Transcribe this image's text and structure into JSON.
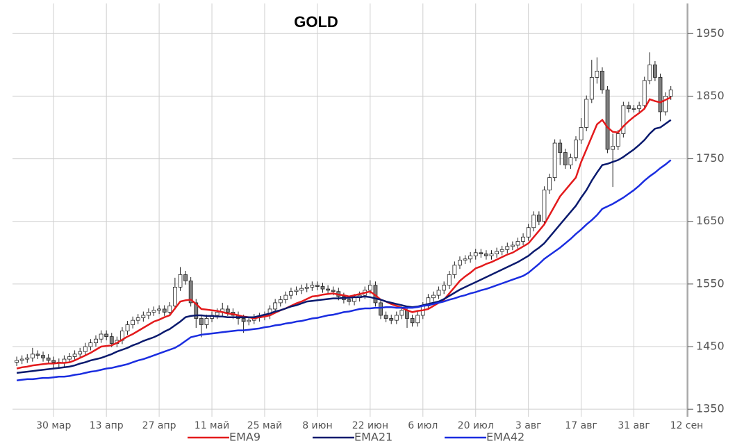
{
  "chart_data": {
    "type": "candlestick",
    "title": "GOLD",
    "categories": [
      null,
      null,
      null,
      null,
      null,
      null,
      null,
      "30 мар",
      null,
      null,
      null,
      null,
      null,
      null,
      null,
      null,
      null,
      "13 апр",
      null,
      null,
      null,
      null,
      null,
      null,
      null,
      null,
      null,
      "27 апр",
      null,
      null,
      null,
      null,
      null,
      null,
      null,
      null,
      null,
      "11 май",
      null,
      null,
      null,
      null,
      null,
      null,
      null,
      null,
      null,
      "25 май",
      null,
      null,
      null,
      null,
      null,
      null,
      null,
      null,
      null,
      "8 июн",
      null,
      null,
      null,
      null,
      null,
      null,
      null,
      null,
      null,
      "22 июн",
      null,
      null,
      null,
      null,
      null,
      null,
      null,
      null,
      null,
      "6 июл",
      null,
      null,
      null,
      null,
      null,
      null,
      null,
      null,
      null,
      "20 июл",
      null,
      null,
      null,
      null,
      null,
      null,
      null,
      null,
      null,
      "3 авг",
      null,
      null,
      null,
      null,
      null,
      null,
      null,
      null,
      null,
      "17 авг",
      null,
      null,
      null,
      null,
      null,
      null,
      null,
      null,
      null,
      "31 авг",
      null,
      null,
      null,
      null,
      null,
      null,
      null,
      null,
      null,
      "12 сен"
    ],
    "candles": {
      "up_color": "#ffffff",
      "down_color": "#808080",
      "open": [
        1425,
        1428,
        1430,
        1432,
        1438,
        1436,
        1432,
        1428,
        1425,
        1424,
        1430,
        1434,
        1438,
        1442,
        1450,
        1456,
        1462,
        1470,
        1466,
        1455,
        1460,
        1475,
        1485,
        1492,
        1496,
        1500,
        1505,
        1508,
        1510,
        1505,
        1515,
        1545,
        1565,
        1555,
        1520,
        1495,
        1485,
        1495,
        1500,
        1505,
        1510,
        1505,
        1500,
        1495,
        1490,
        1492,
        1496,
        1498,
        1500,
        1510,
        1520,
        1525,
        1532,
        1538,
        1540,
        1543,
        1545,
        1548,
        1546,
        1542,
        1540,
        1538,
        1530,
        1525,
        1522,
        1528,
        1532,
        1540,
        1548,
        1520,
        1500,
        1495,
        1492,
        1500,
        1508,
        1495,
        1488,
        1500,
        1515,
        1528,
        1532,
        1540,
        1548,
        1565,
        1580,
        1588,
        1590,
        1595,
        1600,
        1598,
        1595,
        1598,
        1602,
        1605,
        1610,
        1612,
        1618,
        1625,
        1640,
        1660,
        1650,
        1700,
        1720,
        1775,
        1760,
        1740,
        1752,
        1780,
        1800,
        1845,
        1880,
        1890,
        1860,
        1765,
        1770,
        1790,
        1835,
        1830,
        1830,
        1835,
        1875,
        1900,
        1880,
        1825,
        1850,
        null,
        null,
        null
      ],
      "high": [
        1434,
        1436,
        1438,
        1448,
        1444,
        1442,
        1438,
        1434,
        1431,
        1436,
        1440,
        1444,
        1448,
        1456,
        1462,
        1468,
        1476,
        1476,
        1472,
        1466,
        1481,
        1491,
        1498,
        1502,
        1506,
        1511,
        1514,
        1516,
        1516,
        1521,
        1560,
        1577,
        1571,
        1561,
        1526,
        1501,
        1501,
        1506,
        1511,
        1520,
        1516,
        1511,
        1506,
        1501,
        1498,
        1502,
        1504,
        1506,
        1516,
        1526,
        1531,
        1538,
        1544,
        1546,
        1549,
        1551,
        1554,
        1554,
        1552,
        1548,
        1546,
        1544,
        1536,
        1531,
        1534,
        1538,
        1546,
        1556,
        1554,
        1526,
        1506,
        1501,
        1506,
        1514,
        1514,
        1501,
        1506,
        1521,
        1534,
        1538,
        1546,
        1554,
        1571,
        1586,
        1594,
        1596,
        1601,
        1606,
        1606,
        1604,
        1604,
        1608,
        1611,
        1616,
        1618,
        1624,
        1631,
        1646,
        1666,
        1666,
        1706,
        1726,
        1781,
        1781,
        1766,
        1758,
        1786,
        1815,
        1851,
        1908,
        1912,
        1896,
        1866,
        1790,
        1796,
        1841,
        1841,
        1836,
        1841,
        1881,
        1920,
        1906,
        1886,
        1856,
        1866,
        null,
        null,
        null
      ],
      "low": [
        1419,
        1422,
        1424,
        1426,
        1430,
        1426,
        1422,
        1416,
        1415,
        1418,
        1424,
        1428,
        1432,
        1436,
        1444,
        1450,
        1456,
        1460,
        1449,
        1449,
        1454,
        1469,
        1479,
        1486,
        1490,
        1494,
        1499,
        1502,
        1499,
        1499,
        1509,
        1539,
        1549,
        1514,
        1480,
        1465,
        1479,
        1489,
        1494,
        1499,
        1499,
        1494,
        1485,
        1472,
        1484,
        1486,
        1490,
        1492,
        1494,
        1504,
        1514,
        1519,
        1526,
        1532,
        1534,
        1537,
        1539,
        1540,
        1536,
        1534,
        1532,
        1524,
        1519,
        1516,
        1516,
        1522,
        1526,
        1534,
        1514,
        1494,
        1489,
        1486,
        1486,
        1494,
        1480,
        1482,
        1482,
        1494,
        1509,
        1522,
        1526,
        1534,
        1542,
        1559,
        1574,
        1582,
        1584,
        1589,
        1592,
        1589,
        1589,
        1592,
        1596,
        1599,
        1604,
        1606,
        1612,
        1619,
        1634,
        1644,
        1644,
        1694,
        1714,
        1740,
        1734,
        1734,
        1746,
        1774,
        1794,
        1839,
        1870,
        1854,
        1759,
        1705,
        1764,
        1784,
        1824,
        1824,
        1824,
        1829,
        1869,
        1874,
        1810,
        1819,
        1844,
        null,
        null,
        null
      ],
      "close": [
        1428,
        1430,
        1432,
        1438,
        1436,
        1432,
        1428,
        1425,
        1424,
        1430,
        1434,
        1438,
        1442,
        1450,
        1456,
        1462,
        1470,
        1466,
        1455,
        1460,
        1475,
        1485,
        1492,
        1496,
        1500,
        1505,
        1508,
        1510,
        1505,
        1515,
        1545,
        1565,
        1555,
        1520,
        1495,
        1485,
        1495,
        1500,
        1505,
        1510,
        1505,
        1500,
        1495,
        1490,
        1492,
        1496,
        1498,
        1500,
        1510,
        1520,
        1525,
        1532,
        1538,
        1540,
        1543,
        1545,
        1548,
        1546,
        1542,
        1540,
        1538,
        1530,
        1525,
        1522,
        1528,
        1532,
        1540,
        1548,
        1520,
        1500,
        1495,
        1492,
        1500,
        1508,
        1495,
        1488,
        1500,
        1515,
        1528,
        1532,
        1540,
        1548,
        1565,
        1580,
        1588,
        1590,
        1595,
        1600,
        1598,
        1595,
        1598,
        1602,
        1605,
        1610,
        1612,
        1618,
        1625,
        1640,
        1660,
        1650,
        1700,
        1720,
        1775,
        1760,
        1740,
        1752,
        1780,
        1800,
        1845,
        1880,
        1890,
        1860,
        1765,
        1770,
        1790,
        1835,
        1830,
        1830,
        1835,
        1875,
        1900,
        1880,
        1825,
        1850,
        1860,
        null,
        null,
        null
      ]
    },
    "series": [
      {
        "name": "EMA9",
        "color": "#e31a1c",
        "values": [
          1415,
          1417,
          1418,
          1420,
          1421,
          1422,
          1423,
          1423,
          1424,
          1424,
          1425,
          1428,
          1432,
          1436,
          1440,
          1445,
          1450,
          1451,
          1452,
          1456,
          1461,
          1466,
          1470,
          1475,
          1480,
          1485,
          1490,
          1493,
          1497,
          1500,
          1511,
          1522,
          1524,
          1525,
          1518,
          1510,
          1509,
          1508,
          1507,
          1505,
          1503,
          1502,
          1500,
          1498,
          1497,
          1495,
          1497,
          1498,
          1500,
          1504,
          1508,
          1511,
          1515,
          1519,
          1522,
          1526,
          1530,
          1531,
          1533,
          1534,
          1535,
          1533,
          1532,
          1530,
          1532,
          1534,
          1536,
          1538,
          1532,
          1525,
          1522,
          1518,
          1515,
          1512,
          1508,
          1505,
          1507,
          1508,
          1510,
          1515,
          1520,
          1525,
          1535,
          1545,
          1555,
          1562,
          1568,
          1575,
          1578,
          1582,
          1585,
          1589,
          1593,
          1597,
          1600,
          1605,
          1610,
          1615,
          1625,
          1635,
          1645,
          1660,
          1675,
          1690,
          1700,
          1710,
          1720,
          1745,
          1765,
          1785,
          1805,
          1812,
          1800,
          1793,
          1792,
          1802,
          1810,
          1817,
          1823,
          1830,
          1845,
          1842,
          1840,
          1844,
          1848,
          null,
          null,
          null
        ]
      },
      {
        "name": "EMA21",
        "color": "#0a1a6e",
        "values": [
          1408,
          1409,
          1410,
          1411,
          1412,
          1413,
          1414,
          1415,
          1416,
          1417,
          1418,
          1420,
          1423,
          1425,
          1428,
          1430,
          1432,
          1435,
          1438,
          1442,
          1445,
          1448,
          1452,
          1455,
          1459,
          1462,
          1465,
          1469,
          1474,
          1478,
          1484,
          1490,
          1497,
          1499,
          1500,
          1500,
          1499,
          1499,
          1498,
          1498,
          1497,
          1497,
          1497,
          1497,
          1497,
          1497,
          1499,
          1501,
          1503,
          1506,
          1508,
          1511,
          1514,
          1516,
          1519,
          1522,
          1523,
          1524,
          1525,
          1526,
          1527,
          1527,
          1528,
          1528,
          1529,
          1529,
          1530,
          1529,
          1527,
          1525,
          1522,
          1520,
          1518,
          1516,
          1514,
          1513,
          1514,
          1516,
          1518,
          1520,
          1522,
          1526,
          1531,
          1536,
          1541,
          1545,
          1549,
          1553,
          1557,
          1561,
          1565,
          1569,
          1573,
          1577,
          1581,
          1585,
          1590,
          1595,
          1602,
          1608,
          1615,
          1625,
          1635,
          1645,
          1655,
          1665,
          1675,
          1688,
          1700,
          1715,
          1728,
          1740,
          1742,
          1745,
          1748,
          1753,
          1759,
          1765,
          1772,
          1780,
          1790,
          1798,
          1800,
          1806,
          1812,
          null,
          null,
          null
        ]
      },
      {
        "name": "EMA42",
        "color": "#1a2de0",
        "values": [
          1396,
          1397,
          1398,
          1398,
          1399,
          1400,
          1400,
          1401,
          1402,
          1402,
          1403,
          1405,
          1406,
          1408,
          1410,
          1411,
          1413,
          1415,
          1416,
          1418,
          1420,
          1422,
          1425,
          1428,
          1430,
          1433,
          1436,
          1439,
          1442,
          1445,
          1448,
          1453,
          1459,
          1465,
          1467,
          1469,
          1470,
          1471,
          1472,
          1473,
          1474,
          1475,
          1476,
          1476,
          1477,
          1478,
          1479,
          1481,
          1482,
          1484,
          1485,
          1487,
          1488,
          1490,
          1491,
          1493,
          1495,
          1496,
          1498,
          1500,
          1501,
          1503,
          1505,
          1506,
          1508,
          1510,
          1511,
          1511,
          1512,
          1512,
          1513,
          1513,
          1512,
          1512,
          1512,
          1512,
          1513,
          1515,
          1516,
          1518,
          1520,
          1522,
          1525,
          1527,
          1530,
          1532,
          1535,
          1537,
          1540,
          1542,
          1545,
          1548,
          1551,
          1554,
          1557,
          1560,
          1563,
          1568,
          1575,
          1582,
          1590,
          1596,
          1602,
          1608,
          1615,
          1622,
          1630,
          1637,
          1645,
          1652,
          1660,
          1670,
          1674,
          1678,
          1683,
          1688,
          1694,
          1700,
          1707,
          1715,
          1722,
          1728,
          1735,
          1741,
          1748,
          null,
          null,
          null
        ]
      }
    ],
    "ylim": [
      1338,
      1998
    ],
    "yticks": [
      1350,
      1450,
      1550,
      1650,
      1750,
      1850,
      1950
    ],
    "grid": true,
    "legend": "bottom"
  }
}
